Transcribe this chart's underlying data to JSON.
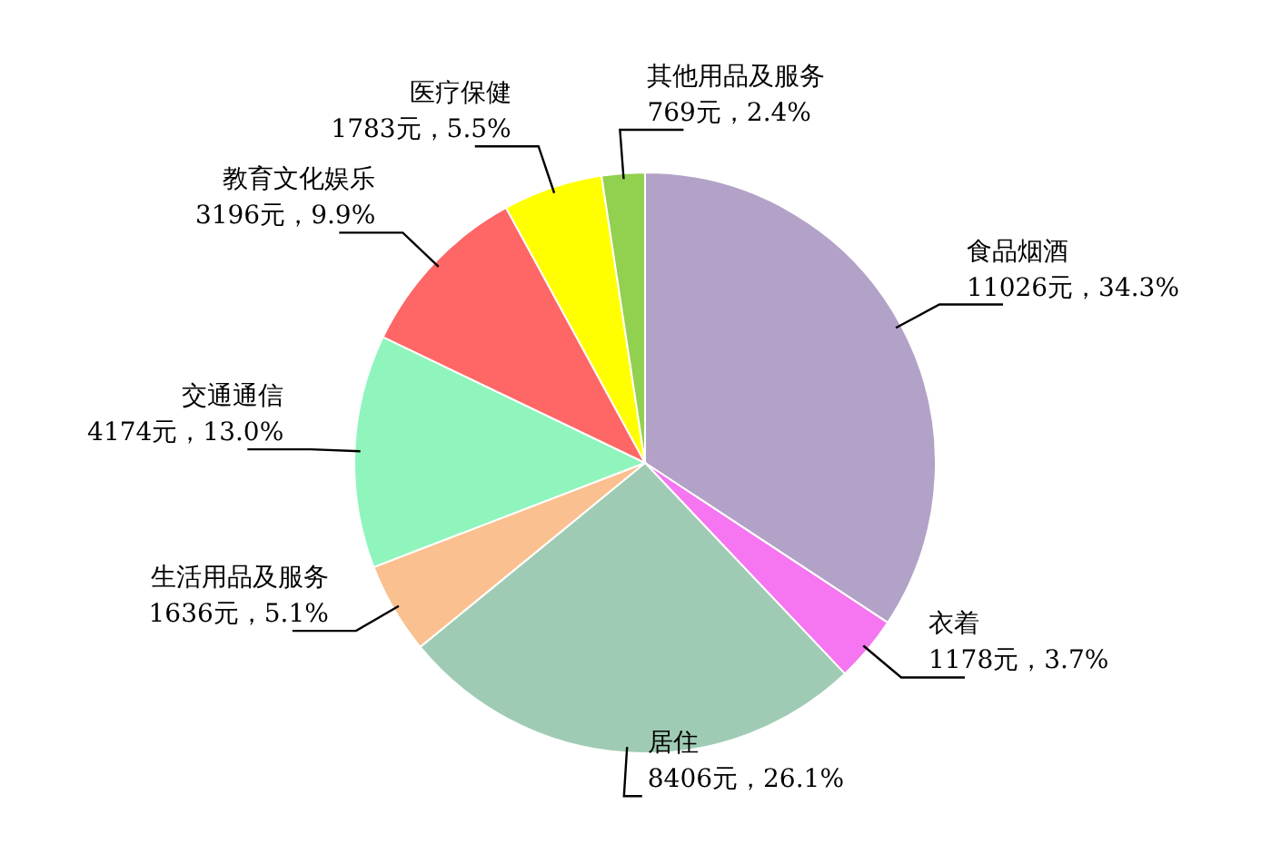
{
  "chart_data": {
    "type": "pie",
    "categories": [
      "食品烟酒",
      "衣着",
      "居住",
      "生活用品及服务",
      "交通通信",
      "教育文化娱乐",
      "医疗保健",
      "其他用品及服务"
    ],
    "values": [
      11026,
      1178,
      8406,
      1636,
      4174,
      3196,
      1783,
      769
    ],
    "value_labels": [
      "11026元，34.3%",
      "1178元，3.7%",
      "8406元，26.1%",
      "1636元，5.1%",
      "4174元，13.0%",
      "3196元，9.9%",
      "1783元，5.5%",
      "769元，2.4%"
    ],
    "colors": [
      "#b3a2c7",
      "#f576f0",
      "#9fcbb4",
      "#fac090",
      "#8ff5bd",
      "#ff6666",
      "#ffff00",
      "#92d050"
    ]
  }
}
